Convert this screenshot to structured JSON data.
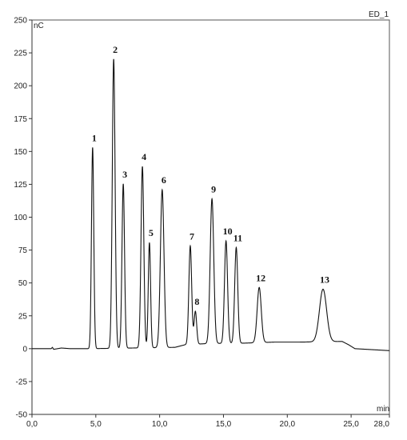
{
  "chart_data": {
    "type": "line",
    "channel_label": "ED_1",
    "y_unit": "nC",
    "x_unit": "min",
    "xlim": [
      0,
      28
    ],
    "ylim": [
      -50,
      250
    ],
    "x_ticks": [
      {
        "v": 0,
        "label": "0,0"
      },
      {
        "v": 5,
        "label": "5,0"
      },
      {
        "v": 10,
        "label": "10,0"
      },
      {
        "v": 15,
        "label": "15,0"
      },
      {
        "v": 20,
        "label": "20,0"
      },
      {
        "v": 25,
        "label": "25,0"
      },
      {
        "v": 28,
        "label": "28,0"
      }
    ],
    "y_ticks": [
      {
        "v": -50,
        "label": "-50"
      },
      {
        "v": -25,
        "label": "-25"
      },
      {
        "v": 0,
        "label": "0"
      },
      {
        "v": 25,
        "label": "25"
      },
      {
        "v": 50,
        "label": "50"
      },
      {
        "v": 75,
        "label": "75"
      },
      {
        "v": 100,
        "label": "100"
      },
      {
        "v": 125,
        "label": "125"
      },
      {
        "v": 150,
        "label": "150"
      },
      {
        "v": 175,
        "label": "175"
      },
      {
        "v": 200,
        "label": "200"
      },
      {
        "v": 225,
        "label": "225"
      },
      {
        "v": 250,
        "label": "250"
      }
    ],
    "baseline": [
      [
        0,
        0
      ],
      [
        1.5,
        0
      ],
      [
        1.6,
        1
      ],
      [
        1.7,
        -0.5
      ],
      [
        2.0,
        0
      ],
      [
        2.3,
        0.5
      ],
      [
        3.0,
        0
      ],
      [
        4.5,
        0
      ],
      [
        11.2,
        1
      ],
      [
        12.0,
        3
      ],
      [
        14.0,
        4
      ],
      [
        16.0,
        4
      ],
      [
        19.0,
        5
      ],
      [
        21.0,
        5
      ],
      [
        24.3,
        5.5
      ],
      [
        24.8,
        3
      ],
      [
        25.3,
        0
      ],
      [
        28,
        -1.5
      ]
    ],
    "peaks": [
      {
        "label": "1",
        "rt": 4.75,
        "height": 153,
        "width": 0.09
      },
      {
        "label": "2",
        "rt": 6.4,
        "height": 220,
        "width": 0.11
      },
      {
        "label": "3",
        "rt": 7.15,
        "height": 125,
        "width": 0.1
      },
      {
        "label": "4",
        "rt": 8.65,
        "height": 138,
        "width": 0.11
      },
      {
        "label": "5",
        "rt": 9.2,
        "height": 80,
        "width": 0.09
      },
      {
        "label": "6",
        "rt": 10.2,
        "height": 120,
        "width": 0.14
      },
      {
        "label": "7",
        "rt": 12.4,
        "height": 75,
        "width": 0.11
      },
      {
        "label": "8",
        "rt": 12.8,
        "height": 25,
        "width": 0.1
      },
      {
        "label": "9",
        "rt": 14.1,
        "height": 110,
        "width": 0.14
      },
      {
        "label": "10",
        "rt": 15.2,
        "height": 78,
        "width": 0.12
      },
      {
        "label": "11",
        "rt": 16.0,
        "height": 73,
        "width": 0.12
      },
      {
        "label": "12",
        "rt": 17.8,
        "height": 42,
        "width": 0.16
      },
      {
        "label": "13",
        "rt": 22.8,
        "height": 40,
        "width": 0.28
      }
    ]
  }
}
